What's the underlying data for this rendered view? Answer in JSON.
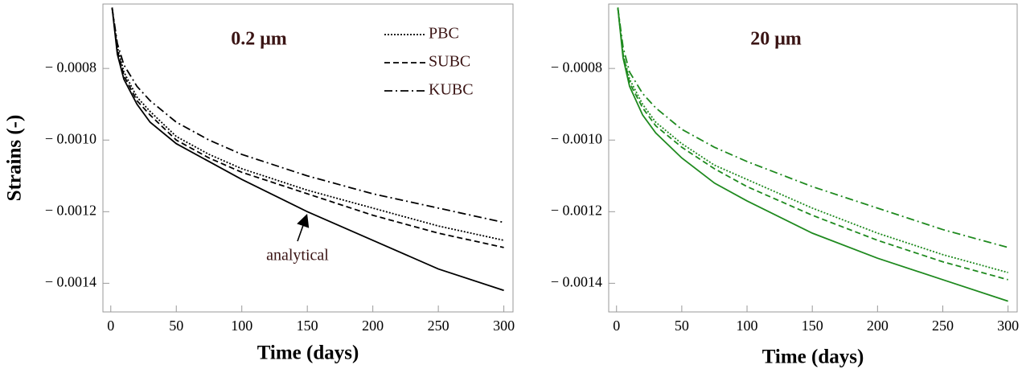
{
  "chart_data": [
    {
      "type": "line",
      "title": "0.2 μm",
      "xlabel": "Time (days)",
      "ylabel": "Strains (-)",
      "x": [
        1,
        5,
        10,
        20,
        30,
        50,
        75,
        100,
        150,
        200,
        250,
        300
      ],
      "series": [
        {
          "name": "PBC",
          "color": "#000000",
          "dash": "dotted",
          "values": [
            -0.00063,
            -0.00074,
            -0.00081,
            -0.00088,
            -0.00092,
            -0.00099,
            -0.00104,
            -0.00108,
            -0.00114,
            -0.00119,
            -0.00124,
            -0.00128
          ]
        },
        {
          "name": "SUBC",
          "color": "#000000",
          "dash": "dashed",
          "values": [
            -0.00063,
            -0.00075,
            -0.00082,
            -0.00089,
            -0.00093,
            -0.001,
            -0.00105,
            -0.00109,
            -0.00115,
            -0.00121,
            -0.00126,
            -0.0013
          ]
        },
        {
          "name": "KUBC",
          "color": "#000000",
          "dash": "dashdot",
          "values": [
            -0.00063,
            -0.00073,
            -0.00079,
            -0.00085,
            -0.00089,
            -0.00095,
            -0.001,
            -0.00104,
            -0.0011,
            -0.00115,
            -0.00119,
            -0.00123
          ]
        },
        {
          "name": "analytical",
          "color": "#000000",
          "dash": "solid",
          "values": [
            -0.00063,
            -0.00076,
            -0.00083,
            -0.0009,
            -0.00095,
            -0.00101,
            -0.00106,
            -0.00111,
            -0.0012,
            -0.00128,
            -0.00136,
            -0.00142
          ]
        }
      ],
      "annotation": "analytical",
      "legend": true,
      "xlim": [
        -6,
        307
      ],
      "xticks": [
        0,
        50,
        100,
        150,
        200,
        250,
        300
      ],
      "ylim": [
        -0.00148,
        -0.00062
      ],
      "yticks": [
        {
          "value": -0.0014,
          "label": "− 0.0014"
        },
        {
          "value": -0.0012,
          "label": "− 0.0012"
        },
        {
          "value": -0.001,
          "label": "− 0.0010"
        },
        {
          "value": -0.0008,
          "label": "− 0.0008"
        }
      ]
    },
    {
      "type": "line",
      "title": "20 μm",
      "xlabel": "Time (days)",
      "x": [
        1,
        5,
        10,
        20,
        30,
        50,
        75,
        100,
        150,
        200,
        250,
        300
      ],
      "series": [
        {
          "name": "PBC",
          "color": "#1f8a1f",
          "dash": "dotted",
          "values": [
            -0.00063,
            -0.00076,
            -0.00083,
            -0.0009,
            -0.00095,
            -0.00101,
            -0.00107,
            -0.00111,
            -0.00119,
            -0.00126,
            -0.00132,
            -0.00137
          ]
        },
        {
          "name": "SUBC",
          "color": "#1f8a1f",
          "dash": "dashed",
          "values": [
            -0.00063,
            -0.00076,
            -0.00084,
            -0.00091,
            -0.00096,
            -0.00102,
            -0.00108,
            -0.00113,
            -0.00121,
            -0.00128,
            -0.00134,
            -0.00139
          ]
        },
        {
          "name": "KUBC",
          "color": "#1f8a1f",
          "dash": "dashdot",
          "values": [
            -0.00063,
            -0.00074,
            -0.00081,
            -0.00087,
            -0.00091,
            -0.00097,
            -0.00102,
            -0.00106,
            -0.00113,
            -0.00119,
            -0.00125,
            -0.0013
          ]
        },
        {
          "name": "analytical",
          "color": "#1f8a1f",
          "dash": "solid",
          "values": [
            -0.00063,
            -0.00077,
            -0.00085,
            -0.00093,
            -0.00098,
            -0.00105,
            -0.00112,
            -0.00117,
            -0.00126,
            -0.00133,
            -0.00139,
            -0.00145
          ]
        }
      ],
      "legend": false,
      "xlim": [
        -6,
        307
      ],
      "xticks": [
        0,
        50,
        100,
        150,
        200,
        250,
        300
      ],
      "ylim": [
        -0.00148,
        -0.00062
      ],
      "yticks": [
        {
          "value": -0.0014,
          "label": "− 0.0014"
        },
        {
          "value": -0.0012,
          "label": "− 0.0012"
        },
        {
          "value": -0.001,
          "label": "− 0.0010"
        },
        {
          "value": -0.0008,
          "label": "− 0.0008"
        }
      ]
    }
  ]
}
